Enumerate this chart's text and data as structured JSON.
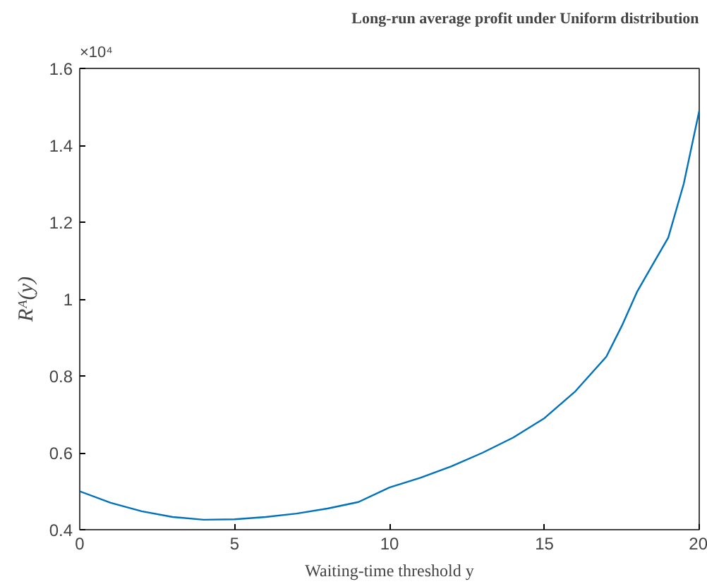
{
  "chart_data": {
    "type": "line",
    "title": "Long-run average profit under Uniform distribution",
    "xlabel": "Waiting-time threshold y",
    "ylabel": "Rᴬ(y)",
    "annotations": [
      "×10⁴"
    ],
    "x": [
      0,
      1,
      2,
      3,
      4,
      5,
      6,
      7,
      8,
      9,
      10,
      11,
      12,
      13,
      14,
      15,
      16,
      17,
      17.5,
      18,
      18.5,
      19,
      19.5,
      20
    ],
    "series": [
      {
        "color": "#0072bd",
        "values": [
          0.5,
          0.47,
          0.448,
          0.433,
          0.426,
          0.427,
          0.433,
          0.442,
          0.455,
          0.472,
          0.51,
          0.535,
          0.565,
          0.6,
          0.64,
          0.69,
          0.76,
          0.85,
          0.93,
          1.02,
          1.09,
          1.16,
          1.3,
          1.49
        ]
      }
    ],
    "xlim": [
      0,
      20
    ],
    "ylim": [
      0.4,
      1.6
    ],
    "xticks": [
      0,
      5,
      10,
      15,
      20
    ],
    "yticks": [
      0.4,
      0.6,
      0.8,
      1,
      1.2,
      1.4,
      1.6
    ],
    "grid": false
  }
}
